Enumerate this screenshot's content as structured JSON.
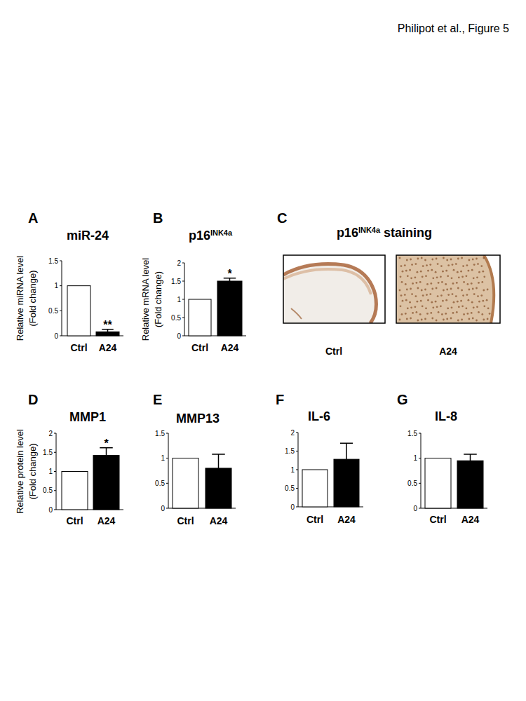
{
  "header": "Philipot et al., Figure 5",
  "image_panel": {
    "panel": "C",
    "title": "p16",
    "title_superscript": "INK4a",
    "title_suffix": " staining",
    "images": [
      "Ctrl",
      "A24"
    ]
  },
  "chart_data": [
    {
      "type": "bar",
      "panel": "A",
      "title": "miR-24",
      "ylabel": [
        "Relative miRNA level",
        "(Fold change)"
      ],
      "categories": [
        "Ctrl",
        "A24"
      ],
      "values": [
        1,
        0.08
      ],
      "errors": [
        null,
        0.05
      ],
      "significance": [
        null,
        "**"
      ],
      "colors": [
        "#ffffff",
        "#000000"
      ],
      "ylim": [
        0,
        1.5
      ],
      "yticks": [
        0,
        0.5,
        1,
        1.5
      ]
    },
    {
      "type": "bar",
      "panel": "B",
      "title": "p16",
      "title_superscript": "INK4a",
      "ylabel": [
        "Relative mRNA level",
        "(Fold change)"
      ],
      "categories": [
        "Ctrl",
        "A24"
      ],
      "values": [
        1,
        1.5
      ],
      "errors": [
        null,
        0.08
      ],
      "significance": [
        null,
        "*"
      ],
      "colors": [
        "#ffffff",
        "#000000"
      ],
      "ylim": [
        0,
        2
      ],
      "yticks": [
        0,
        0.5,
        1,
        1.5,
        2
      ]
    },
    {
      "type": "bar",
      "panel": "D",
      "title": "MMP1",
      "ylabel": [
        "Relative protein level",
        "(Fold change)"
      ],
      "categories": [
        "Ctrl",
        "A24"
      ],
      "values": [
        1,
        1.42
      ],
      "errors": [
        null,
        0.2
      ],
      "significance": [
        null,
        "*"
      ],
      "colors": [
        "#ffffff",
        "#000000"
      ],
      "ylim": [
        0,
        2
      ],
      "yticks": [
        0,
        0.5,
        1,
        1.5,
        2
      ]
    },
    {
      "type": "bar",
      "panel": "E",
      "title": "MMP13",
      "categories": [
        "Ctrl",
        "A24"
      ],
      "values": [
        1,
        0.8
      ],
      "errors": [
        null,
        0.28
      ],
      "colors": [
        "#ffffff",
        "#000000"
      ],
      "ylim": [
        0,
        1.5
      ],
      "yticks": [
        0,
        0.5,
        1,
        1.5
      ]
    },
    {
      "type": "bar",
      "panel": "F",
      "title": "IL-6",
      "categories": [
        "Ctrl",
        "A24"
      ],
      "values": [
        1,
        1.28
      ],
      "errors": [
        null,
        0.43
      ],
      "colors": [
        "#ffffff",
        "#000000"
      ],
      "ylim": [
        0,
        2
      ],
      "yticks": [
        0,
        0.5,
        1,
        1.5,
        2
      ]
    },
    {
      "type": "bar",
      "panel": "G",
      "title": "IL-8",
      "categories": [
        "Ctrl",
        "A24"
      ],
      "values": [
        1,
        0.95
      ],
      "errors": [
        null,
        0.13
      ],
      "colors": [
        "#ffffff",
        "#000000"
      ],
      "ylim": [
        0,
        1.5
      ],
      "yticks": [
        0,
        0.5,
        1,
        1.5
      ]
    }
  ]
}
